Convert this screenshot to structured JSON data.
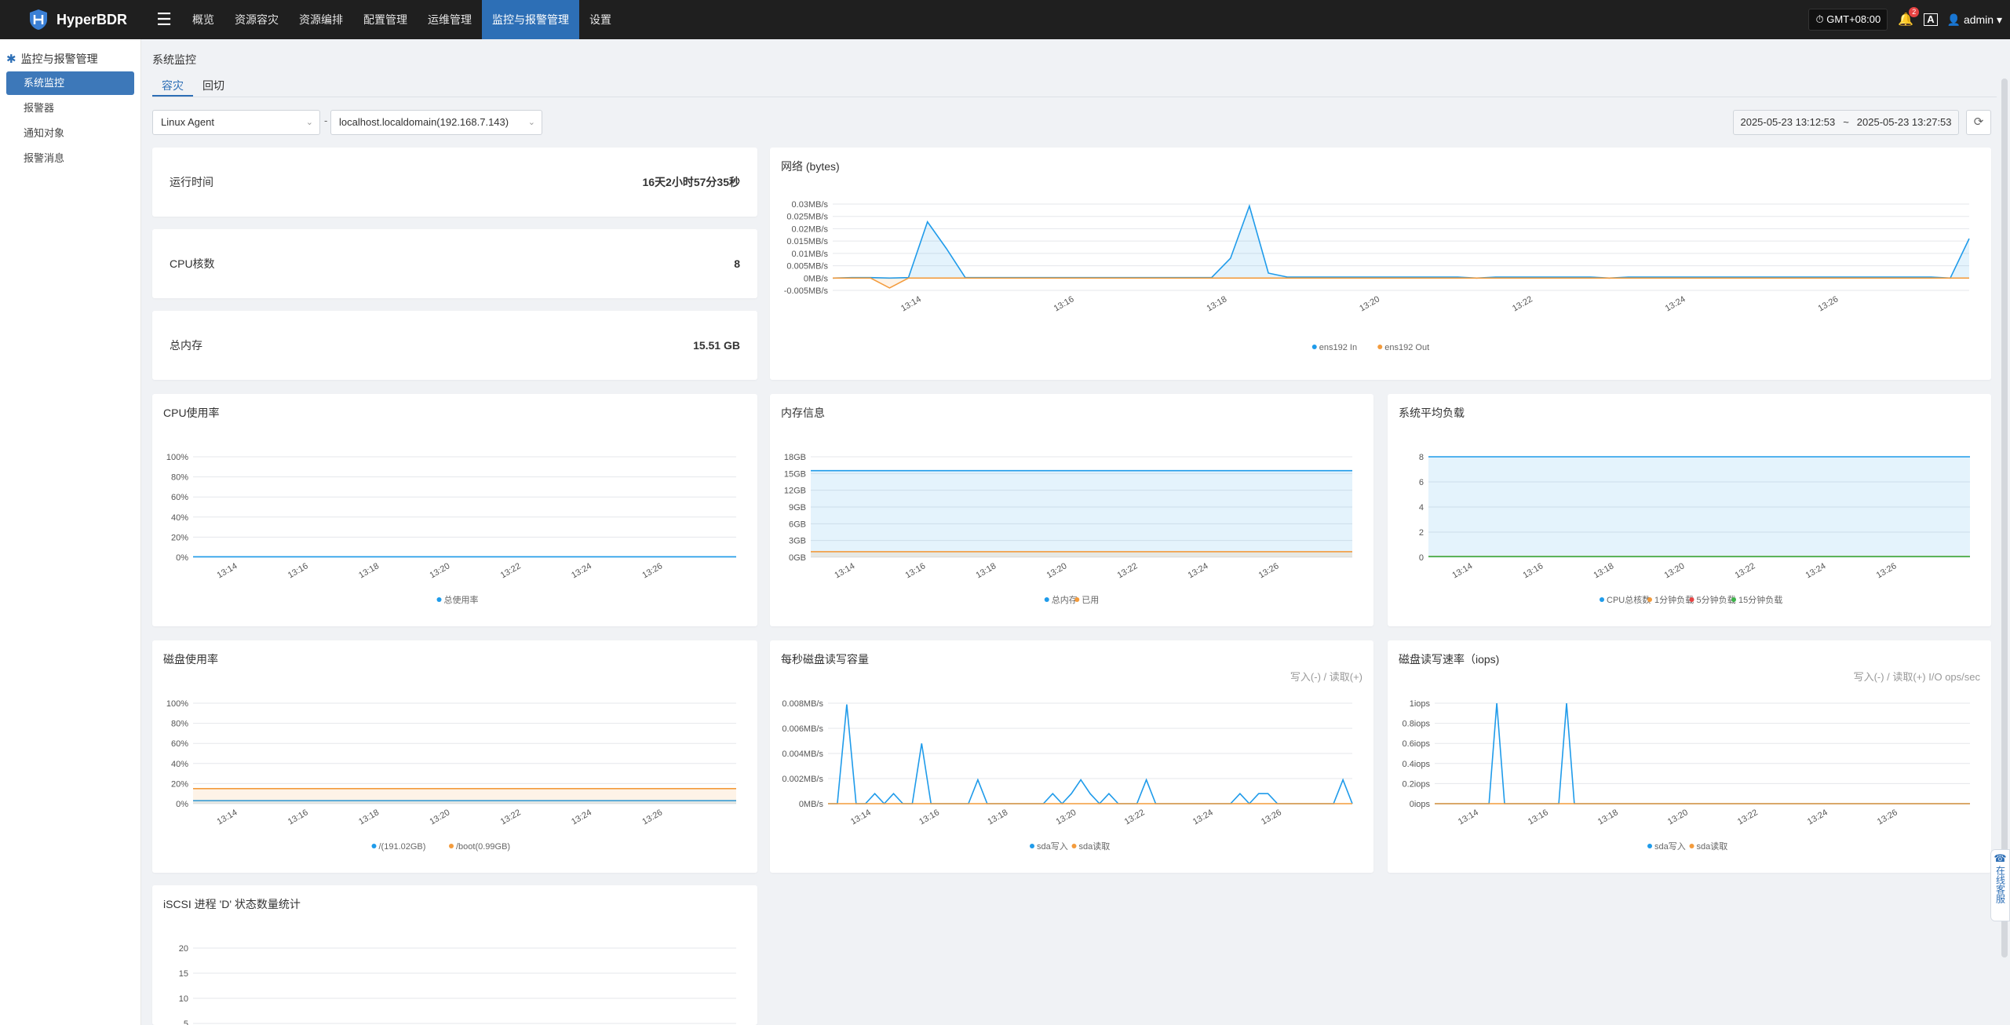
{
  "brand": {
    "name": "HyperBDR"
  },
  "nav": {
    "items": [
      "概览",
      "资源容灾",
      "资源编排",
      "配置管理",
      "运维管理",
      "监控与报警管理",
      "设置"
    ],
    "active": 5
  },
  "topright": {
    "timezone": "GMT+08:00",
    "notify_count": "2",
    "lang": "A",
    "user": "admin"
  },
  "sidebar": {
    "title": "监控与报警管理",
    "items": [
      "系统监控",
      "报警器",
      "通知对象",
      "报警消息"
    ]
  },
  "page": {
    "title": "系统监控"
  },
  "tabs": [
    "容灾",
    "回切"
  ],
  "filters": {
    "agent_type": "Linux Agent",
    "host": "localhost.localdomain(192.168.7.143)",
    "separator": "-",
    "time_start": "2025-05-23 13:12:53",
    "time_sep": "~",
    "time_end": "2025-05-23 13:27:53"
  },
  "stats": [
    {
      "label": "运行时间",
      "value": "16天2小时57分35秒"
    },
    {
      "label": "CPU核数",
      "value": "8"
    },
    {
      "label": "总内存",
      "value": "15.51 GB"
    }
  ],
  "floating_service": "在线客服",
  "colors": {
    "primary": "#2d6fb6",
    "series_blue": "#1f9bea",
    "series_orange": "#f39b3c",
    "series_red": "#e64242",
    "series_green": "#3db34a"
  },
  "time_ticks": [
    "13:14",
    "13:16",
    "13:18",
    "13:20",
    "13:22",
    "13:24",
    "13:26"
  ],
  "chart_data": [
    {
      "id": "network",
      "type": "line",
      "title": "网络 (bytes)",
      "subtitle": "",
      "yticks": [
        "0.03MB/s",
        "0.025MB/s",
        "0.02MB/s",
        "0.015MB/s",
        "0.01MB/s",
        "0.005MB/s",
        "0MB/s",
        "-0.005MB/s"
      ],
      "ylim": [
        -0.005,
        0.03
      ],
      "x": "13:12:53..13:27:53 (61 samples, 15s interval)",
      "series": [
        {
          "name": "ens192 In",
          "color": "#1f9bea",
          "area": true,
          "values": [
            0,
            0.0002,
            0.0002,
            0,
            0.0002,
            0.0228,
            0.012,
            0.0002,
            0.0002,
            0.0002,
            0.0002,
            0.0002,
            0.0002,
            0.0002,
            0.0002,
            0.0002,
            0.0002,
            0.0002,
            0.0002,
            0.0002,
            0.0002,
            0.008,
            0.0292,
            0.002,
            0.0004,
            0.0004,
            0.0004,
            0.0004,
            0.0004,
            0.0004,
            0.0004,
            0.0004,
            0.0004,
            0.0004,
            0,
            0.0004,
            0.0004,
            0.0004,
            0.0004,
            0.0004,
            0.0004,
            0,
            0.0004,
            0.0004,
            0.0004,
            0.0004,
            0.0004,
            0.0004,
            0.0004,
            0.0004,
            0.0004,
            0.0004,
            0.0004,
            0.0004,
            0.0004,
            0.0004,
            0.0004,
            0.0004,
            0.0004,
            0,
            0.016
          ],
          "spikes_note": ""
        },
        {
          "name": "ens192 Out",
          "color": "#f39b3c",
          "area": true,
          "values": [
            0,
            0,
            0,
            -0.004,
            0,
            0,
            0,
            0,
            0,
            0,
            0,
            0,
            0,
            0,
            0,
            0,
            0,
            0,
            0,
            0,
            0,
            0,
            0,
            0,
            0,
            0,
            0,
            0,
            0,
            0,
            0,
            0,
            0,
            0,
            0,
            0,
            0,
            0,
            0,
            0,
            0,
            0,
            0,
            0,
            0,
            0,
            0,
            0,
            0,
            0,
            0,
            0,
            0,
            0,
            0,
            0,
            0,
            0,
            0,
            0,
            0
          ]
        }
      ]
    },
    {
      "id": "cpu",
      "type": "line",
      "title": "CPU使用率",
      "yticks": [
        "100%",
        "80%",
        "60%",
        "40%",
        "20%",
        "0%"
      ],
      "ylim": [
        0,
        100
      ],
      "series": [
        {
          "name": "总使用率",
          "color": "#1f9bea",
          "values": [
            0.5,
            0.5,
            0.5,
            0.5,
            0.5,
            0.5,
            0.5,
            0.5
          ]
        }
      ]
    },
    {
      "id": "memory",
      "type": "area",
      "title": "内存信息",
      "yticks": [
        "18GB",
        "15GB",
        "12GB",
        "9GB",
        "6GB",
        "3GB",
        "0GB"
      ],
      "ylim": [
        0,
        18
      ],
      "series": [
        {
          "name": "总内存",
          "color": "#1f9bea",
          "values": [
            15.51,
            15.51,
            15.51,
            15.51,
            15.51,
            15.51,
            15.51,
            15.51
          ]
        },
        {
          "name": "已用",
          "color": "#f39b3c",
          "values": [
            1.0,
            1.0,
            1.0,
            1.0,
            1.0,
            1.0,
            1.0,
            1.0
          ]
        }
      ]
    },
    {
      "id": "load",
      "type": "area",
      "title": "系统平均负载",
      "yticks": [
        "8",
        "6",
        "4",
        "2",
        "0"
      ],
      "ylim": [
        0,
        8
      ],
      "series": [
        {
          "name": "CPU总核数",
          "color": "#1f9bea",
          "values": [
            8,
            8,
            8,
            8,
            8,
            8,
            8,
            8
          ]
        },
        {
          "name": "1分钟负载",
          "color": "#f39b3c",
          "values": [
            0.05,
            0.05,
            0.05,
            0.05,
            0.05,
            0.05,
            0.05,
            0.05
          ]
        },
        {
          "name": "5分钟负载",
          "color": "#e64242",
          "values": [
            0.05,
            0.05,
            0.05,
            0.05,
            0.05,
            0.05,
            0.05,
            0.05
          ]
        },
        {
          "name": "15分钟负载",
          "color": "#3db34a",
          "values": [
            0.05,
            0.05,
            0.05,
            0.05,
            0.05,
            0.05,
            0.05,
            0.05
          ]
        }
      ]
    },
    {
      "id": "disk_usage",
      "type": "area",
      "title": "磁盘使用率",
      "yticks": [
        "100%",
        "80%",
        "60%",
        "40%",
        "20%",
        "0%"
      ],
      "ylim": [
        0,
        100
      ],
      "series": [
        {
          "name": "/(191.02GB)",
          "color": "#1f9bea",
          "values": [
            3,
            3,
            3,
            3,
            3,
            3,
            3,
            3
          ]
        },
        {
          "name": "/boot(0.99GB)",
          "color": "#f39b3c",
          "values": [
            15,
            15,
            15,
            15,
            15,
            15,
            15,
            15
          ]
        }
      ]
    },
    {
      "id": "disk_rw",
      "type": "line",
      "title": "每秒磁盘读写容量",
      "subtitle": "写入(-) / 读取(+)",
      "yticks": [
        "0.008MB/s",
        "0.006MB/s",
        "0.004MB/s",
        "0.002MB/s",
        "0MB/s"
      ],
      "ylim": [
        0,
        0.008
      ],
      "series": [
        {
          "name": "sda写入",
          "color": "#1f9bea",
          "values": [
            0,
            0,
            0.0079,
            0,
            0,
            0.0008,
            0,
            0.0008,
            0,
            0,
            0.0048,
            0,
            0,
            0,
            0,
            0,
            0.0019,
            0,
            0,
            0,
            0,
            0,
            0,
            0,
            0.0008,
            0,
            0.0008,
            0.0019,
            0.0008,
            0,
            0.0008,
            0,
            0,
            0,
            0.0019,
            0,
            0,
            0,
            0,
            0,
            0,
            0,
            0,
            0,
            0.0008,
            0,
            0.0008,
            0.0008,
            0,
            0,
            0,
            0,
            0,
            0,
            0,
            0.0019,
            0
          ]
        },
        {
          "name": "sda读取",
          "color": "#f39b3c",
          "values": [
            0,
            0,
            0,
            0,
            0,
            0,
            0,
            0,
            0,
            0,
            0,
            0,
            0,
            0,
            0,
            0,
            0,
            0,
            0,
            0,
            0,
            0,
            0,
            0,
            0,
            0,
            0,
            0,
            0,
            0,
            0,
            0,
            0,
            0,
            0,
            0,
            0,
            0,
            0,
            0,
            0,
            0,
            0,
            0,
            0,
            0,
            0,
            0,
            0,
            0,
            0,
            0,
            0,
            0,
            0,
            0,
            0
          ]
        }
      ]
    },
    {
      "id": "disk_iops",
      "type": "line",
      "title": "磁盘读写速率（iops)",
      "subtitle": "写入(-) / 读取(+) I/O ops/sec",
      "yticks": [
        "1iops",
        "0.8iops",
        "0.6iops",
        "0.4iops",
        "0.2iops",
        "0iops"
      ],
      "ylim": [
        0,
        1
      ],
      "series": [
        {
          "name": "sda写入",
          "color": "#1f9bea",
          "values": [
            0,
            0,
            0,
            0,
            0,
            0,
            0,
            0,
            1,
            0,
            0,
            0,
            0,
            0,
            0,
            0,
            0,
            1,
            0,
            0,
            0,
            0,
            0,
            0,
            0,
            0,
            0,
            0,
            0,
            0,
            0,
            0,
            0,
            0,
            0,
            0,
            0,
            0,
            0,
            0,
            0,
            0,
            0,
            0,
            0,
            0,
            0,
            0,
            0,
            0,
            0,
            0,
            0,
            0,
            0,
            0,
            0,
            0,
            0,
            0,
            0,
            0,
            0,
            0,
            0,
            0,
            0,
            0,
            0,
            0
          ]
        },
        {
          "name": "sda读取",
          "color": "#f39b3c",
          "values": [
            0,
            0,
            0,
            0,
            0,
            0,
            0,
            0,
            0,
            0,
            0,
            0,
            0,
            0,
            0,
            0,
            0,
            0,
            0,
            0,
            0,
            0,
            0,
            0,
            0,
            0,
            0,
            0,
            0,
            0,
            0,
            0,
            0,
            0,
            0,
            0,
            0,
            0,
            0,
            0,
            0,
            0,
            0,
            0,
            0,
            0,
            0,
            0,
            0,
            0,
            0,
            0,
            0,
            0,
            0,
            0,
            0,
            0,
            0,
            0,
            0,
            0,
            0,
            0,
            0,
            0,
            0,
            0,
            0,
            0
          ]
        }
      ]
    },
    {
      "id": "iscsi",
      "type": "line",
      "title": "iSCSI 进程 'D' 状态数量统计",
      "yticks": [
        "20",
        "15",
        "10",
        "5"
      ],
      "ylim": [
        0,
        20
      ],
      "series": []
    }
  ]
}
